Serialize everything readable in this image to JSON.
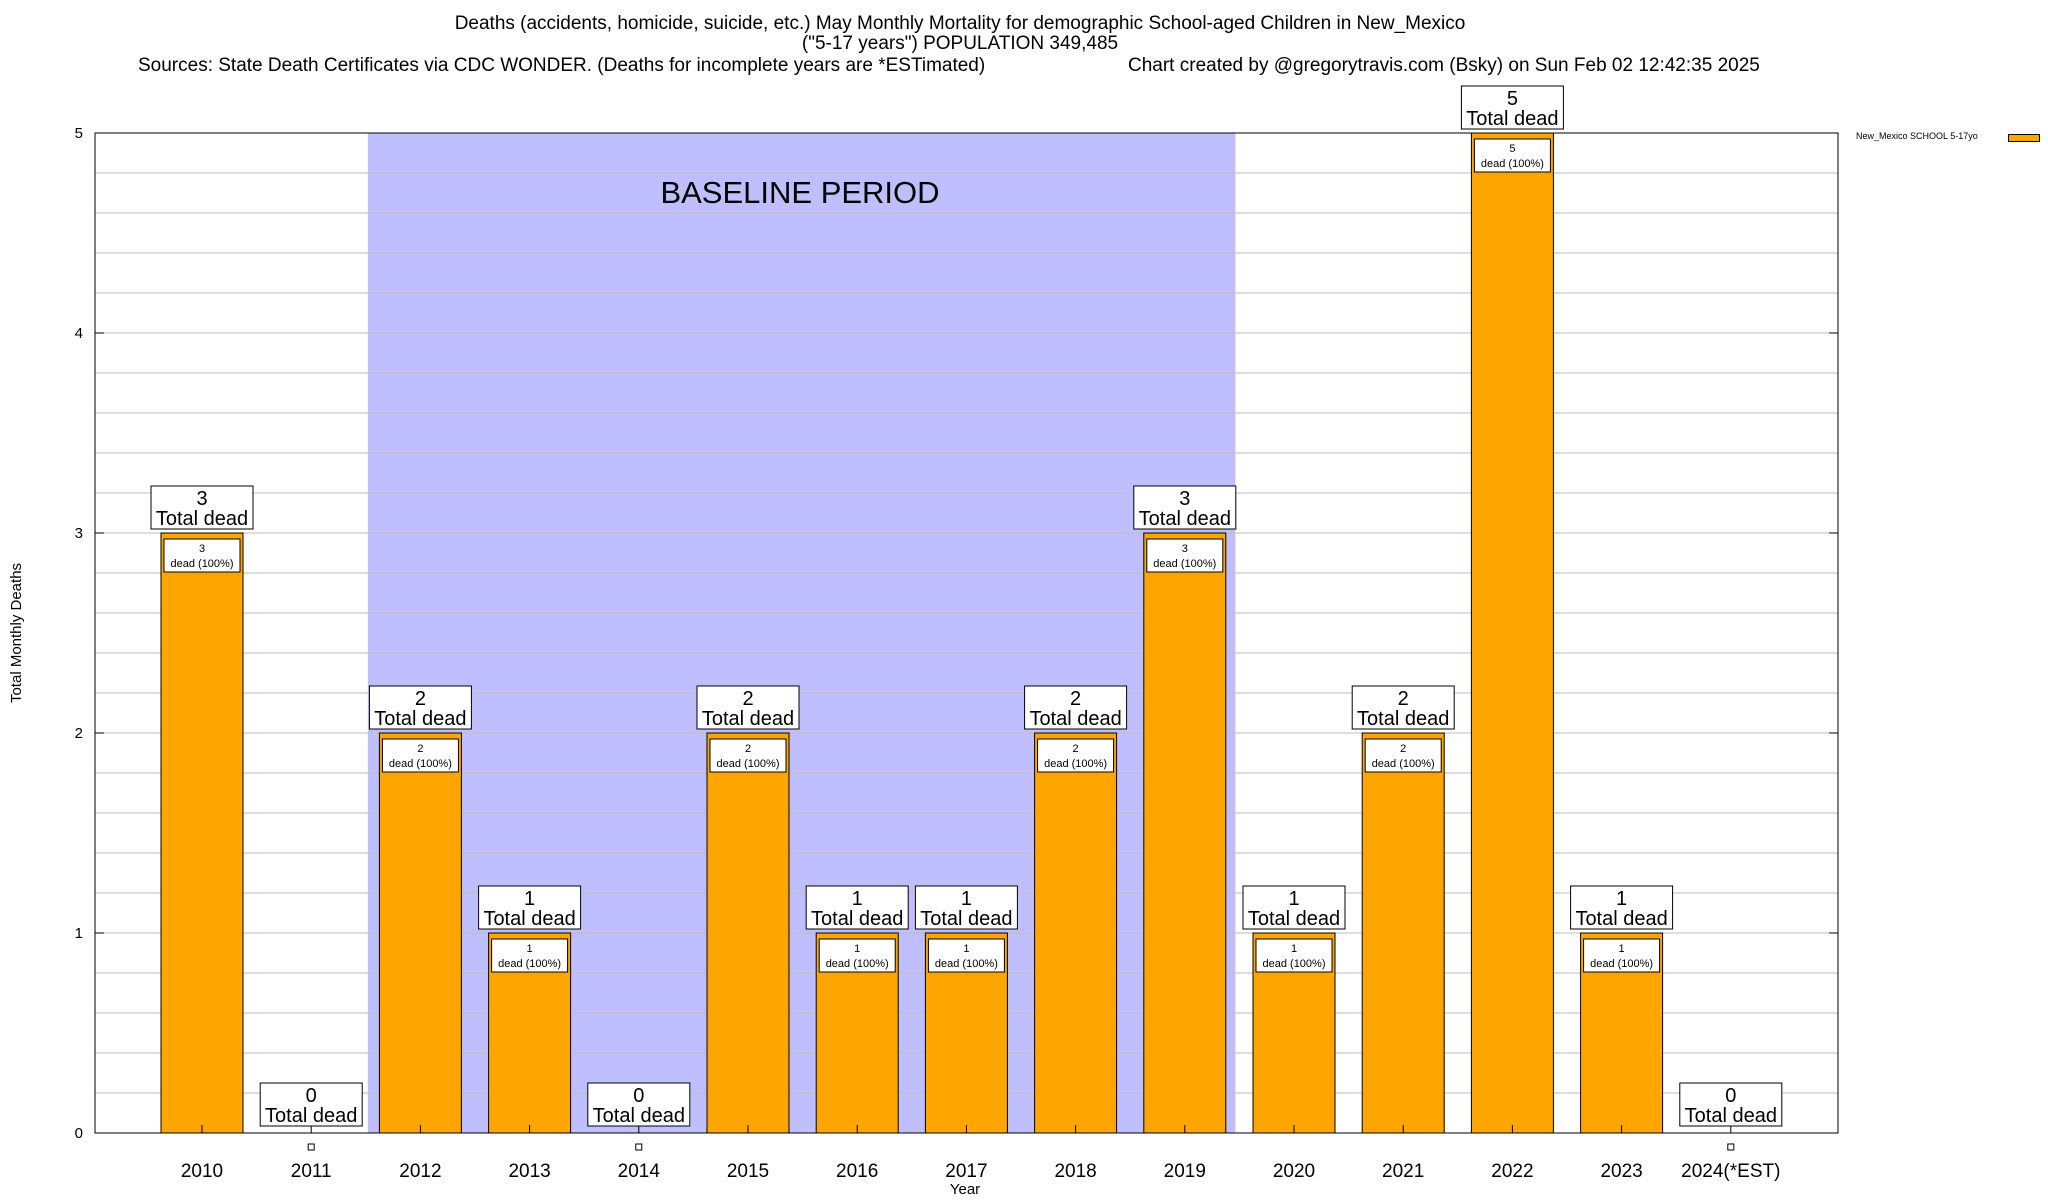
{
  "title": {
    "line1": "Deaths (accidents, homicide, suicide, etc.) May Monthly Mortality for demographic School-aged Children in New_Mexico",
    "line2": "(\"5-17 years\") POPULATION 349,485",
    "sources": "Sources: State Death Certificates via CDC WONDER. (Deaths for incomplete years are *ESTimated)",
    "credit": "Chart created by @gregorytravis.com (Bsky) on Sun Feb 02 12:42:35 2025"
  },
  "colors": {
    "bar": "#FFA500",
    "baseline_shade": "#BFBFFF",
    "grid": "#BEBEBE"
  },
  "chart_data": {
    "type": "bar",
    "title": "Deaths (accidents, homicide, suicide, etc.) May Monthly Mortality for demographic School-aged Children in New_Mexico",
    "xlabel": "Year",
    "ylabel": "Total Monthly Deaths",
    "categories": [
      "2010",
      "2011",
      "2012",
      "2013",
      "2014",
      "2015",
      "2016",
      "2017",
      "2018",
      "2019",
      "2020",
      "2021",
      "2022",
      "2023",
      "2024(*EST)"
    ],
    "series": [
      {
        "name": "New_Mexico SCHOOL 5-17yo",
        "values": [
          3,
          0,
          2,
          1,
          0,
          2,
          1,
          1,
          2,
          3,
          1,
          2,
          5,
          1,
          0
        ]
      }
    ],
    "ylim": [
      0,
      5
    ],
    "yticks": [
      0,
      1,
      2,
      3,
      4,
      5
    ],
    "grid": true,
    "legend_position": "top-right",
    "baseline_period": {
      "label": "BASELINE PERIOD",
      "start": "2012",
      "end": "2019"
    },
    "total_label": "Total dead",
    "inner_label_suffix": "dead (100%)"
  }
}
